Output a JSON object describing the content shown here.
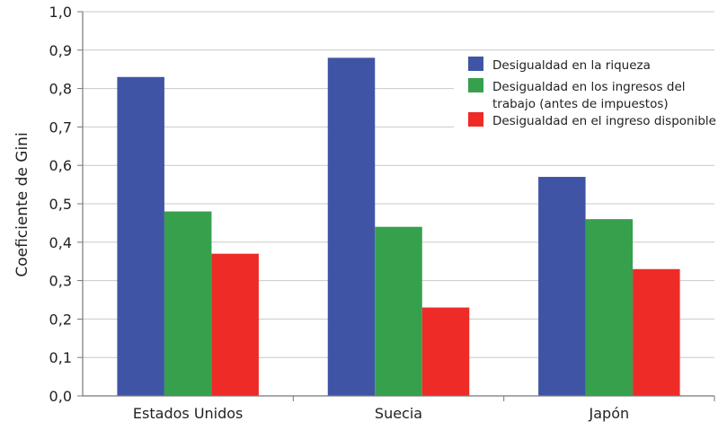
{
  "chart_data": {
    "type": "bar",
    "title": "",
    "xlabel": "",
    "ylabel": "Coeficiente de Gini",
    "ylim": [
      0,
      1
    ],
    "yticks": [
      "0,0",
      "0,1",
      "0,2",
      "0,3",
      "0,4",
      "0,5",
      "0,6",
      "0,7",
      "0,8",
      "0,9",
      "1,0"
    ],
    "grid": true,
    "legend_position": "top-right",
    "categories": [
      "Estados Unidos",
      "Suecia",
      "Japón"
    ],
    "series": [
      {
        "name": "Desigualdad en la riqueza",
        "color": "#4054a6",
        "values": [
          0.83,
          0.88,
          0.57
        ]
      },
      {
        "name": "Desigualdad en los ingresos del trabajo (antes de impuestos)",
        "name_lines": [
          "Desigualdad en los ingresos del",
          "trabajo (antes de impuestos)"
        ],
        "color": "#36a04d",
        "values": [
          0.48,
          0.44,
          0.46
        ]
      },
      {
        "name": "Desigualdad en el ingreso disponible",
        "color": "#ee2b26",
        "values": [
          0.37,
          0.23,
          0.33
        ]
      }
    ]
  }
}
